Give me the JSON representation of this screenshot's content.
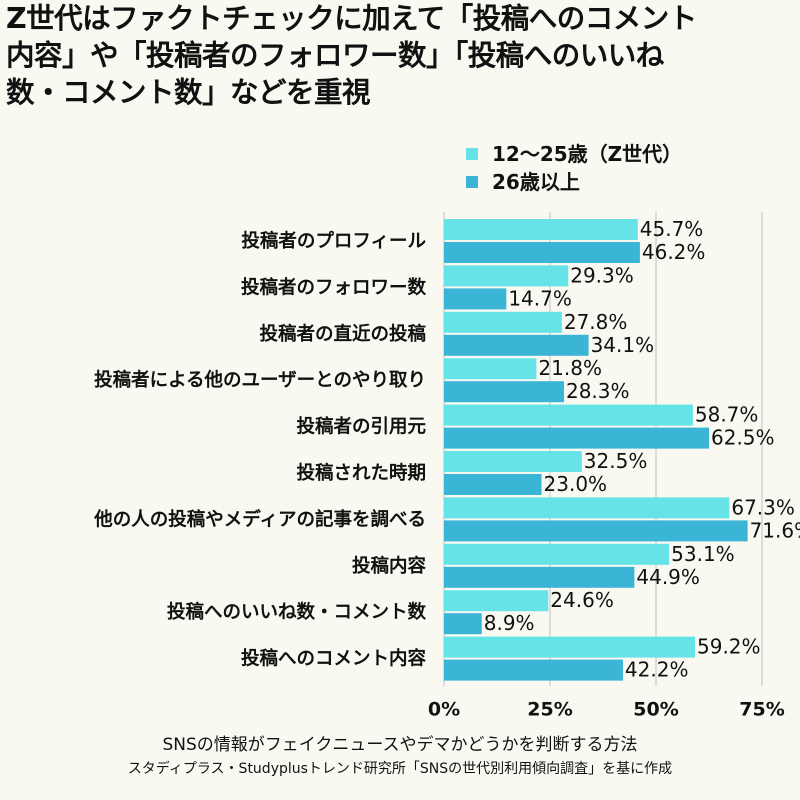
{
  "title": "Z世代はファクトチェックに加えて「投稿へのコメント内容」や「投稿者のフォロワー数」「投稿へのいいね数・コメント数」などを重視",
  "subtitle": "SNSの情報がフェイクニュースやデマかどうかを判断する方法",
  "source": "スタディプラス・Studyplusトレンド研究所「SNSの世代別利用傾向調査」を基に作成",
  "colors": {
    "z": "#66e3e6",
    "adult": "#3ab5d6",
    "grid": "#c9c9c9",
    "background": "#f9f9f2"
  },
  "chart_data": {
    "type": "bar",
    "orientation": "horizontal",
    "categories": [
      "投稿者のプロフィール",
      "投稿者のフォロワー数",
      "投稿者の直近の投稿",
      "投稿者による他のユーザーとのやり取り",
      "投稿者の引用元",
      "投稿された時期",
      "他の人の投稿やメディアの記事を調べる",
      "投稿内容",
      "投稿へのいいね数・コメント数",
      "投稿へのコメント内容"
    ],
    "series": [
      {
        "name": "12〜25歳（Z世代）",
        "values": [
          45.7,
          29.3,
          27.8,
          21.8,
          58.7,
          32.5,
          67.3,
          53.1,
          24.6,
          59.2
        ]
      },
      {
        "name": "26歳以上",
        "values": [
          46.2,
          14.7,
          34.1,
          28.3,
          62.5,
          23.0,
          71.6,
          44.9,
          8.9,
          42.2
        ]
      }
    ],
    "value_suffix": "%",
    "xlim": [
      0,
      75
    ],
    "xticks": [
      "0%",
      "25%",
      "50%",
      "75%"
    ],
    "xtick_values": [
      0,
      25,
      50,
      75
    ],
    "grid": true,
    "legend_position": "top-right"
  }
}
